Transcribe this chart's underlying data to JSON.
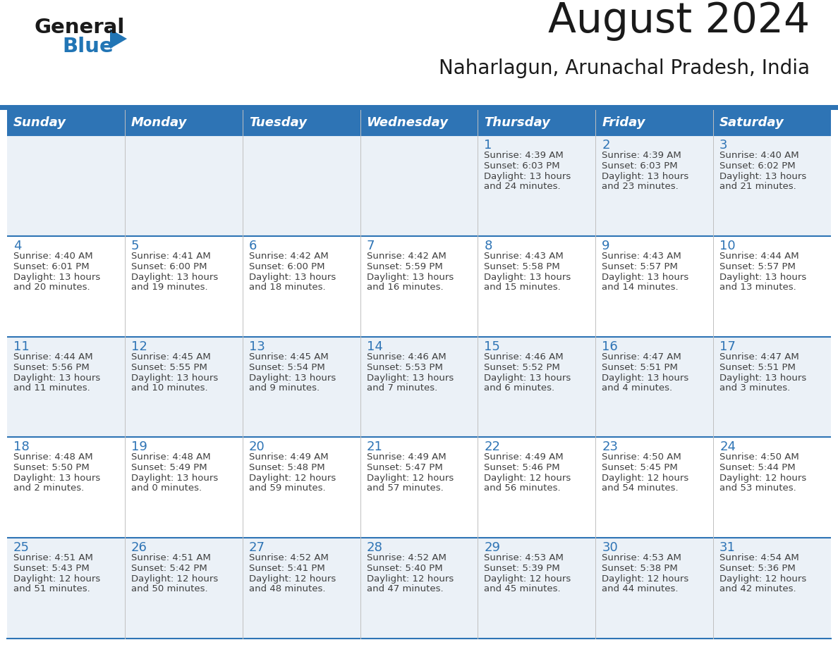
{
  "title": "August 2024",
  "subtitle": "Naharlagun, Arunachal Pradesh, India",
  "days_of_week": [
    "Sunday",
    "Monday",
    "Tuesday",
    "Wednesday",
    "Thursday",
    "Friday",
    "Saturday"
  ],
  "header_bg": "#2E74B5",
  "header_text_color": "#FFFFFF",
  "row_odd_bg": "#EBF1F7",
  "row_even_bg": "#FFFFFF",
  "separator_color": "#2E74B5",
  "day_number_color": "#2E74B5",
  "cell_text_color": "#404040",
  "calendar_data": [
    [
      {
        "day": "",
        "sunrise": "",
        "sunset": "",
        "daylight": ""
      },
      {
        "day": "",
        "sunrise": "",
        "sunset": "",
        "daylight": ""
      },
      {
        "day": "",
        "sunrise": "",
        "sunset": "",
        "daylight": ""
      },
      {
        "day": "",
        "sunrise": "",
        "sunset": "",
        "daylight": ""
      },
      {
        "day": "1",
        "sunrise": "Sunrise: 4:39 AM",
        "sunset": "Sunset: 6:03 PM",
        "daylight": "Daylight: 13 hours\nand 24 minutes."
      },
      {
        "day": "2",
        "sunrise": "Sunrise: 4:39 AM",
        "sunset": "Sunset: 6:03 PM",
        "daylight": "Daylight: 13 hours\nand 23 minutes."
      },
      {
        "day": "3",
        "sunrise": "Sunrise: 4:40 AM",
        "sunset": "Sunset: 6:02 PM",
        "daylight": "Daylight: 13 hours\nand 21 minutes."
      }
    ],
    [
      {
        "day": "4",
        "sunrise": "Sunrise: 4:40 AM",
        "sunset": "Sunset: 6:01 PM",
        "daylight": "Daylight: 13 hours\nand 20 minutes."
      },
      {
        "day": "5",
        "sunrise": "Sunrise: 4:41 AM",
        "sunset": "Sunset: 6:00 PM",
        "daylight": "Daylight: 13 hours\nand 19 minutes."
      },
      {
        "day": "6",
        "sunrise": "Sunrise: 4:42 AM",
        "sunset": "Sunset: 6:00 PM",
        "daylight": "Daylight: 13 hours\nand 18 minutes."
      },
      {
        "day": "7",
        "sunrise": "Sunrise: 4:42 AM",
        "sunset": "Sunset: 5:59 PM",
        "daylight": "Daylight: 13 hours\nand 16 minutes."
      },
      {
        "day": "8",
        "sunrise": "Sunrise: 4:43 AM",
        "sunset": "Sunset: 5:58 PM",
        "daylight": "Daylight: 13 hours\nand 15 minutes."
      },
      {
        "day": "9",
        "sunrise": "Sunrise: 4:43 AM",
        "sunset": "Sunset: 5:57 PM",
        "daylight": "Daylight: 13 hours\nand 14 minutes."
      },
      {
        "day": "10",
        "sunrise": "Sunrise: 4:44 AM",
        "sunset": "Sunset: 5:57 PM",
        "daylight": "Daylight: 13 hours\nand 13 minutes."
      }
    ],
    [
      {
        "day": "11",
        "sunrise": "Sunrise: 4:44 AM",
        "sunset": "Sunset: 5:56 PM",
        "daylight": "Daylight: 13 hours\nand 11 minutes."
      },
      {
        "day": "12",
        "sunrise": "Sunrise: 4:45 AM",
        "sunset": "Sunset: 5:55 PM",
        "daylight": "Daylight: 13 hours\nand 10 minutes."
      },
      {
        "day": "13",
        "sunrise": "Sunrise: 4:45 AM",
        "sunset": "Sunset: 5:54 PM",
        "daylight": "Daylight: 13 hours\nand 9 minutes."
      },
      {
        "day": "14",
        "sunrise": "Sunrise: 4:46 AM",
        "sunset": "Sunset: 5:53 PM",
        "daylight": "Daylight: 13 hours\nand 7 minutes."
      },
      {
        "day": "15",
        "sunrise": "Sunrise: 4:46 AM",
        "sunset": "Sunset: 5:52 PM",
        "daylight": "Daylight: 13 hours\nand 6 minutes."
      },
      {
        "day": "16",
        "sunrise": "Sunrise: 4:47 AM",
        "sunset": "Sunset: 5:51 PM",
        "daylight": "Daylight: 13 hours\nand 4 minutes."
      },
      {
        "day": "17",
        "sunrise": "Sunrise: 4:47 AM",
        "sunset": "Sunset: 5:51 PM",
        "daylight": "Daylight: 13 hours\nand 3 minutes."
      }
    ],
    [
      {
        "day": "18",
        "sunrise": "Sunrise: 4:48 AM",
        "sunset": "Sunset: 5:50 PM",
        "daylight": "Daylight: 13 hours\nand 2 minutes."
      },
      {
        "day": "19",
        "sunrise": "Sunrise: 4:48 AM",
        "sunset": "Sunset: 5:49 PM",
        "daylight": "Daylight: 13 hours\nand 0 minutes."
      },
      {
        "day": "20",
        "sunrise": "Sunrise: 4:49 AM",
        "sunset": "Sunset: 5:48 PM",
        "daylight": "Daylight: 12 hours\nand 59 minutes."
      },
      {
        "day": "21",
        "sunrise": "Sunrise: 4:49 AM",
        "sunset": "Sunset: 5:47 PM",
        "daylight": "Daylight: 12 hours\nand 57 minutes."
      },
      {
        "day": "22",
        "sunrise": "Sunrise: 4:49 AM",
        "sunset": "Sunset: 5:46 PM",
        "daylight": "Daylight: 12 hours\nand 56 minutes."
      },
      {
        "day": "23",
        "sunrise": "Sunrise: 4:50 AM",
        "sunset": "Sunset: 5:45 PM",
        "daylight": "Daylight: 12 hours\nand 54 minutes."
      },
      {
        "day": "24",
        "sunrise": "Sunrise: 4:50 AM",
        "sunset": "Sunset: 5:44 PM",
        "daylight": "Daylight: 12 hours\nand 53 minutes."
      }
    ],
    [
      {
        "day": "25",
        "sunrise": "Sunrise: 4:51 AM",
        "sunset": "Sunset: 5:43 PM",
        "daylight": "Daylight: 12 hours\nand 51 minutes."
      },
      {
        "day": "26",
        "sunrise": "Sunrise: 4:51 AM",
        "sunset": "Sunset: 5:42 PM",
        "daylight": "Daylight: 12 hours\nand 50 minutes."
      },
      {
        "day": "27",
        "sunrise": "Sunrise: 4:52 AM",
        "sunset": "Sunset: 5:41 PM",
        "daylight": "Daylight: 12 hours\nand 48 minutes."
      },
      {
        "day": "28",
        "sunrise": "Sunrise: 4:52 AM",
        "sunset": "Sunset: 5:40 PM",
        "daylight": "Daylight: 12 hours\nand 47 minutes."
      },
      {
        "day": "29",
        "sunrise": "Sunrise: 4:53 AM",
        "sunset": "Sunset: 5:39 PM",
        "daylight": "Daylight: 12 hours\nand 45 minutes."
      },
      {
        "day": "30",
        "sunrise": "Sunrise: 4:53 AM",
        "sunset": "Sunset: 5:38 PM",
        "daylight": "Daylight: 12 hours\nand 44 minutes."
      },
      {
        "day": "31",
        "sunrise": "Sunrise: 4:54 AM",
        "sunset": "Sunset: 5:36 PM",
        "daylight": "Daylight: 12 hours\nand 42 minutes."
      }
    ]
  ],
  "logo_text1": "General",
  "logo_text2": "Blue",
  "logo_text1_color": "#1a1a1a",
  "logo_text2_color": "#2175B5",
  "logo_triangle_color": "#2175B5",
  "title_fontsize": 42,
  "subtitle_fontsize": 20,
  "header_fontsize": 13,
  "day_num_fontsize": 13,
  "cell_fontsize": 9.5,
  "logo_fontsize1": 21,
  "logo_fontsize2": 21
}
